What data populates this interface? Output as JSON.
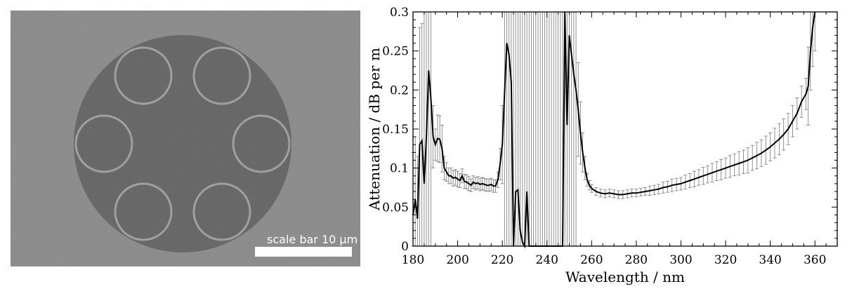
{
  "sem_image": {
    "scale_bar_label": "scale bar 10 µm",
    "background_color": "#8e8e8e",
    "fiber_color": "#3d3d3d",
    "capillary_wall_color": "#b8b8b8",
    "capillary_count": 6
  },
  "chart_data": {
    "type": "line",
    "xlabel": "Wavelength / nm",
    "ylabel": "Attenuation / dB per m",
    "xlim": [
      180,
      370
    ],
    "ylim": [
      0,
      0.3
    ],
    "x_ticks": [
      180,
      200,
      220,
      240,
      260,
      280,
      300,
      320,
      340,
      360
    ],
    "y_ticks": [
      0,
      0.05,
      0.1,
      0.15,
      0.2,
      0.25,
      0.3
    ],
    "x_tick_labels": [
      "180",
      "200",
      "220",
      "240",
      "260",
      "280",
      "300",
      "320",
      "340",
      "360"
    ],
    "y_tick_labels": [
      "0",
      "0.05",
      "0.1",
      "0.15",
      "0.2",
      "0.25",
      "0.3"
    ],
    "grid": false,
    "line_color": "#000000",
    "errorbar_color": "#777777",
    "series": [
      {
        "x": [
          180,
          181,
          182,
          183,
          184,
          185,
          186,
          187,
          188,
          189,
          190,
          191,
          192,
          193,
          194,
          195,
          196,
          197,
          198,
          199,
          200,
          201,
          202,
          203,
          204,
          205,
          206,
          207,
          208,
          209,
          210,
          211,
          212,
          213,
          214,
          215,
          216,
          217,
          218,
          219,
          220,
          221,
          222,
          223,
          224,
          225,
          226,
          227,
          228,
          229,
          230,
          231,
          232,
          233,
          234,
          235,
          236,
          237,
          238,
          239,
          240,
          241,
          242,
          243,
          244,
          245,
          246,
          247,
          248,
          249,
          250,
          251,
          252,
          253,
          254,
          255,
          256,
          257,
          258,
          259,
          260,
          262,
          264,
          266,
          268,
          270,
          272,
          274,
          276,
          278,
          280,
          282,
          284,
          286,
          288,
          290,
          292,
          294,
          296,
          298,
          300,
          302,
          304,
          306,
          308,
          310,
          312,
          314,
          316,
          318,
          320,
          322,
          324,
          326,
          328,
          330,
          332,
          334,
          336,
          338,
          340,
          342,
          344,
          346,
          348,
          350,
          352,
          354,
          356,
          357,
          358,
          359,
          360
        ],
        "y": [
          0.04,
          0.06,
          0.035,
          0.13,
          0.135,
          0.08,
          0.14,
          0.225,
          0.19,
          0.14,
          0.13,
          0.138,
          0.137,
          0.125,
          0.1,
          0.095,
          0.09,
          0.09,
          0.087,
          0.088,
          0.086,
          0.084,
          0.09,
          0.083,
          0.082,
          0.08,
          0.078,
          0.082,
          0.08,
          0.081,
          0.079,
          0.08,
          0.079,
          0.078,
          0.078,
          0.079,
          0.077,
          0.077,
          0.085,
          0.105,
          0.13,
          0.195,
          0.26,
          0.245,
          0.21,
          0.0,
          0.07,
          0.072,
          0.02,
          0.005,
          0.0,
          0.07,
          0.0,
          0.0,
          0.0,
          0.0,
          0.0,
          0.0,
          0.0,
          0.0,
          0.0,
          0.0,
          0.0,
          0.0,
          0.0,
          0.0,
          0.0,
          0.0,
          0.3,
          0.155,
          0.27,
          0.245,
          0.22,
          0.2,
          0.175,
          0.145,
          0.12,
          0.1,
          0.085,
          0.078,
          0.074,
          0.07,
          0.068,
          0.067,
          0.068,
          0.067,
          0.066,
          0.066,
          0.067,
          0.068,
          0.068,
          0.069,
          0.07,
          0.071,
          0.072,
          0.073,
          0.075,
          0.076,
          0.078,
          0.079,
          0.08,
          0.082,
          0.084,
          0.086,
          0.088,
          0.09,
          0.092,
          0.094,
          0.096,
          0.098,
          0.1,
          0.102,
          0.104,
          0.106,
          0.108,
          0.11,
          0.113,
          0.116,
          0.119,
          0.123,
          0.127,
          0.132,
          0.137,
          0.143,
          0.15,
          0.16,
          0.17,
          0.185,
          0.195,
          0.205,
          0.25,
          0.28,
          0.3
        ],
        "err": [
          0.08,
          0.08,
          0.08,
          0.15,
          0.15,
          0.3,
          0.3,
          0.3,
          0.2,
          0.04,
          0.02,
          0.03,
          0.03,
          0.03,
          0.015,
          0.012,
          0.01,
          0.01,
          0.01,
          0.01,
          0.01,
          0.009,
          0.009,
          0.009,
          0.009,
          0.009,
          0.008,
          0.008,
          0.008,
          0.008,
          0.008,
          0.008,
          0.008,
          0.008,
          0.008,
          0.008,
          0.008,
          0.008,
          0.01,
          0.02,
          0.05,
          0.3,
          0.3,
          0.3,
          0.3,
          0.3,
          0.3,
          0.3,
          0.3,
          0.3,
          0.3,
          0.3,
          0.3,
          0.3,
          0.3,
          0.3,
          0.3,
          0.3,
          0.3,
          0.3,
          0.3,
          0.3,
          0.3,
          0.3,
          0.3,
          0.3,
          0.3,
          0.3,
          0.3,
          0.3,
          0.3,
          0.3,
          0.3,
          0.2,
          0.06,
          0.04,
          0.025,
          0.015,
          0.008,
          0.006,
          0.005,
          0.005,
          0.005,
          0.005,
          0.005,
          0.005,
          0.005,
          0.005,
          0.005,
          0.005,
          0.005,
          0.005,
          0.005,
          0.006,
          0.006,
          0.006,
          0.007,
          0.007,
          0.008,
          0.008,
          0.008,
          0.009,
          0.009,
          0.01,
          0.01,
          0.011,
          0.011,
          0.012,
          0.012,
          0.013,
          0.013,
          0.014,
          0.014,
          0.015,
          0.015,
          0.016,
          0.016,
          0.017,
          0.017,
          0.018,
          0.018,
          0.019,
          0.02,
          0.02,
          0.02,
          0.02,
          0.02,
          0.02,
          0.02,
          0.05,
          0.05,
          0.05,
          0.05
        ]
      }
    ]
  }
}
